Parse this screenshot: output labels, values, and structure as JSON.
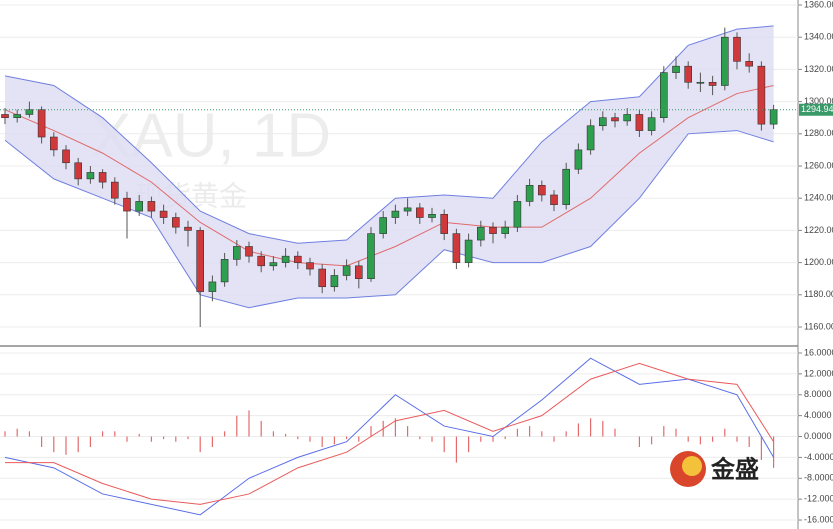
{
  "chart_data": [
    {
      "type": "candlestick",
      "title": "XAU, 1D",
      "subtitle": "现货黄金",
      "open": [
        1292,
        1290,
        1292,
        1295,
        1278,
        1270,
        1262,
        1252,
        1256,
        1250,
        1240,
        1232,
        1238,
        1232,
        1228,
        1222,
        1220,
        1182,
        1188,
        1202,
        1210,
        1204,
        1198,
        1200,
        1204,
        1200,
        1196,
        1185,
        1192,
        1198,
        1190,
        1218,
        1228,
        1232,
        1234,
        1228,
        1230,
        1218,
        1200,
        1214,
        1222,
        1218,
        1222,
        1238,
        1248,
        1242,
        1236,
        1258,
        1270,
        1285,
        1290,
        1288,
        1292,
        1282,
        1290,
        1318,
        1322,
        1312,
        1312,
        1310,
        1340,
        1325,
        1322,
        1286
      ],
      "high": [
        1296,
        1295,
        1300,
        1297,
        1281,
        1273,
        1265,
        1260,
        1258,
        1253,
        1244,
        1242,
        1241,
        1236,
        1231,
        1226,
        1222,
        1192,
        1206,
        1214,
        1213,
        1207,
        1204,
        1209,
        1207,
        1203,
        1199,
        1196,
        1202,
        1201,
        1222,
        1232,
        1236,
        1240,
        1237,
        1234,
        1233,
        1221,
        1218,
        1226,
        1225,
        1226,
        1242,
        1252,
        1251,
        1245,
        1262,
        1274,
        1289,
        1294,
        1293,
        1296,
        1295,
        1294,
        1322,
        1328,
        1325,
        1318,
        1316,
        1346,
        1343,
        1330,
        1325,
        1298
      ],
      "low": [
        1286,
        1287,
        1290,
        1274,
        1266,
        1258,
        1248,
        1249,
        1246,
        1236,
        1215,
        1229,
        1228,
        1224,
        1218,
        1210,
        1160,
        1176,
        1185,
        1198,
        1200,
        1194,
        1195,
        1197,
        1196,
        1192,
        1181,
        1182,
        1189,
        1184,
        1188,
        1215,
        1224,
        1229,
        1224,
        1225,
        1214,
        1196,
        1197,
        1210,
        1212,
        1215,
        1219,
        1235,
        1238,
        1232,
        1233,
        1255,
        1267,
        1282,
        1284,
        1285,
        1278,
        1279,
        1287,
        1314,
        1308,
        1306,
        1304,
        1307,
        1320,
        1318,
        1282,
        1283
      ],
      "close": [
        1290,
        1292,
        1295,
        1278,
        1270,
        1262,
        1252,
        1256,
        1250,
        1240,
        1232,
        1238,
        1232,
        1228,
        1222,
        1220,
        1182,
        1188,
        1202,
        1210,
        1204,
        1198,
        1200,
        1204,
        1200,
        1196,
        1185,
        1192,
        1198,
        1190,
        1218,
        1228,
        1232,
        1234,
        1228,
        1230,
        1218,
        1200,
        1214,
        1222,
        1218,
        1222,
        1238,
        1248,
        1242,
        1236,
        1258,
        1270,
        1285,
        1290,
        1288,
        1292,
        1282,
        1290,
        1318,
        1322,
        1312,
        1312,
        1310,
        1340,
        1325,
        1322,
        1286,
        1295
      ],
      "up_color": "#2e9e4f",
      "down_color": "#d0393b",
      "band_x": [
        0,
        4,
        8,
        12,
        16,
        20,
        24,
        28,
        32,
        36,
        40,
        44,
        48,
        52,
        56,
        60,
        63
      ],
      "bands": {
        "upper": {
          "color": "#6f7fe0",
          "values": [
            1316,
            1310,
            1290,
            1262,
            1232,
            1218,
            1212,
            1214,
            1240,
            1242,
            1240,
            1275,
            1300,
            1303,
            1335,
            1345,
            1347
          ]
        },
        "middle": {
          "color": "#e06a6a",
          "values": [
            1295,
            1282,
            1268,
            1250,
            1225,
            1207,
            1200,
            1198,
            1210,
            1225,
            1222,
            1222,
            1240,
            1268,
            1290,
            1305,
            1310
          ]
        },
        "lower": {
          "color": "#6f7fe0",
          "values": [
            1276,
            1252,
            1240,
            1228,
            1180,
            1172,
            1178,
            1178,
            1180,
            1208,
            1200,
            1200,
            1210,
            1240,
            1280,
            1282,
            1275
          ]
        }
      },
      "band_fill": "#dcdcf2",
      "last_price": 1294.94,
      "ylim": [
        1149,
        1363
      ],
      "yticks": [
        {
          "value": 1160,
          "label": "1160.00"
        },
        {
          "value": 1180,
          "label": "1180.00"
        },
        {
          "value": 1200,
          "label": "1200.00"
        },
        {
          "value": 1220,
          "label": "1220.00"
        },
        {
          "value": 1240,
          "label": "1240.00"
        },
        {
          "value": 1260,
          "label": "1260.00"
        },
        {
          "value": 1280,
          "label": "1280.00"
        },
        {
          "value": 1300,
          "label": "1300.00"
        },
        {
          "value": 1320,
          "label": "1320.00"
        },
        {
          "value": 1340,
          "label": "1340.00"
        },
        {
          "value": 1360,
          "label": "1360.00"
        }
      ],
      "grid": true
    },
    {
      "type": "macd",
      "x": [
        0,
        4,
        8,
        12,
        16,
        20,
        24,
        28,
        32,
        36,
        40,
        44,
        48,
        52,
        56,
        60,
        63
      ],
      "dif": {
        "color": "#5a6ee8",
        "values": [
          -4,
          -6,
          -11,
          -13,
          -15,
          -8,
          -4,
          -1,
          8,
          2,
          0,
          7,
          15,
          10,
          11,
          8,
          -4
        ]
      },
      "dea": {
        "color": "#ea5a5a",
        "values": [
          -5,
          -5,
          -9,
          -12,
          -13,
          -11,
          -6,
          -3,
          3,
          5,
          1,
          4,
          11,
          14,
          11,
          10,
          -1
        ]
      },
      "histogram": {
        "color": "#e36b6b",
        "values": [
          1,
          1.5,
          1,
          -2,
          -3,
          -3.5,
          -3,
          -2,
          1,
          1,
          -1,
          0.5,
          -1,
          -0.5,
          -1,
          -0.5,
          -3,
          -2,
          1,
          4,
          5,
          3,
          1,
          0.5,
          -0.5,
          -1,
          -2,
          -1.5,
          -0.5,
          -1,
          2,
          3,
          3.5,
          2,
          -0.5,
          -1,
          -3,
          -5,
          -3,
          -1,
          -1,
          -0.5,
          1.5,
          2,
          1,
          -1,
          1,
          2.5,
          3.5,
          3,
          1.5,
          0,
          -2,
          -1.5,
          2,
          1.5,
          -1,
          -1.5,
          -1,
          1.5,
          -1,
          -2,
          -4.5,
          -6
        ]
      },
      "ylim": [
        -17.7,
        16.96
      ],
      "yticks": [
        {
          "value": 16,
          "label": "16.0000"
        },
        {
          "value": 12,
          "label": "12.0000"
        },
        {
          "value": 8,
          "label": "8.0000"
        },
        {
          "value": 4,
          "label": "4.0000"
        },
        {
          "value": 0,
          "label": "0.0000"
        },
        {
          "value": -4,
          "label": "-4.0000"
        },
        {
          "value": -8,
          "label": "-8.0000"
        },
        {
          "value": -12,
          "label": "-12.0000"
        },
        {
          "value": -16,
          "label": "-16.0000"
        }
      ],
      "grid": true
    }
  ],
  "logo": "金盛"
}
